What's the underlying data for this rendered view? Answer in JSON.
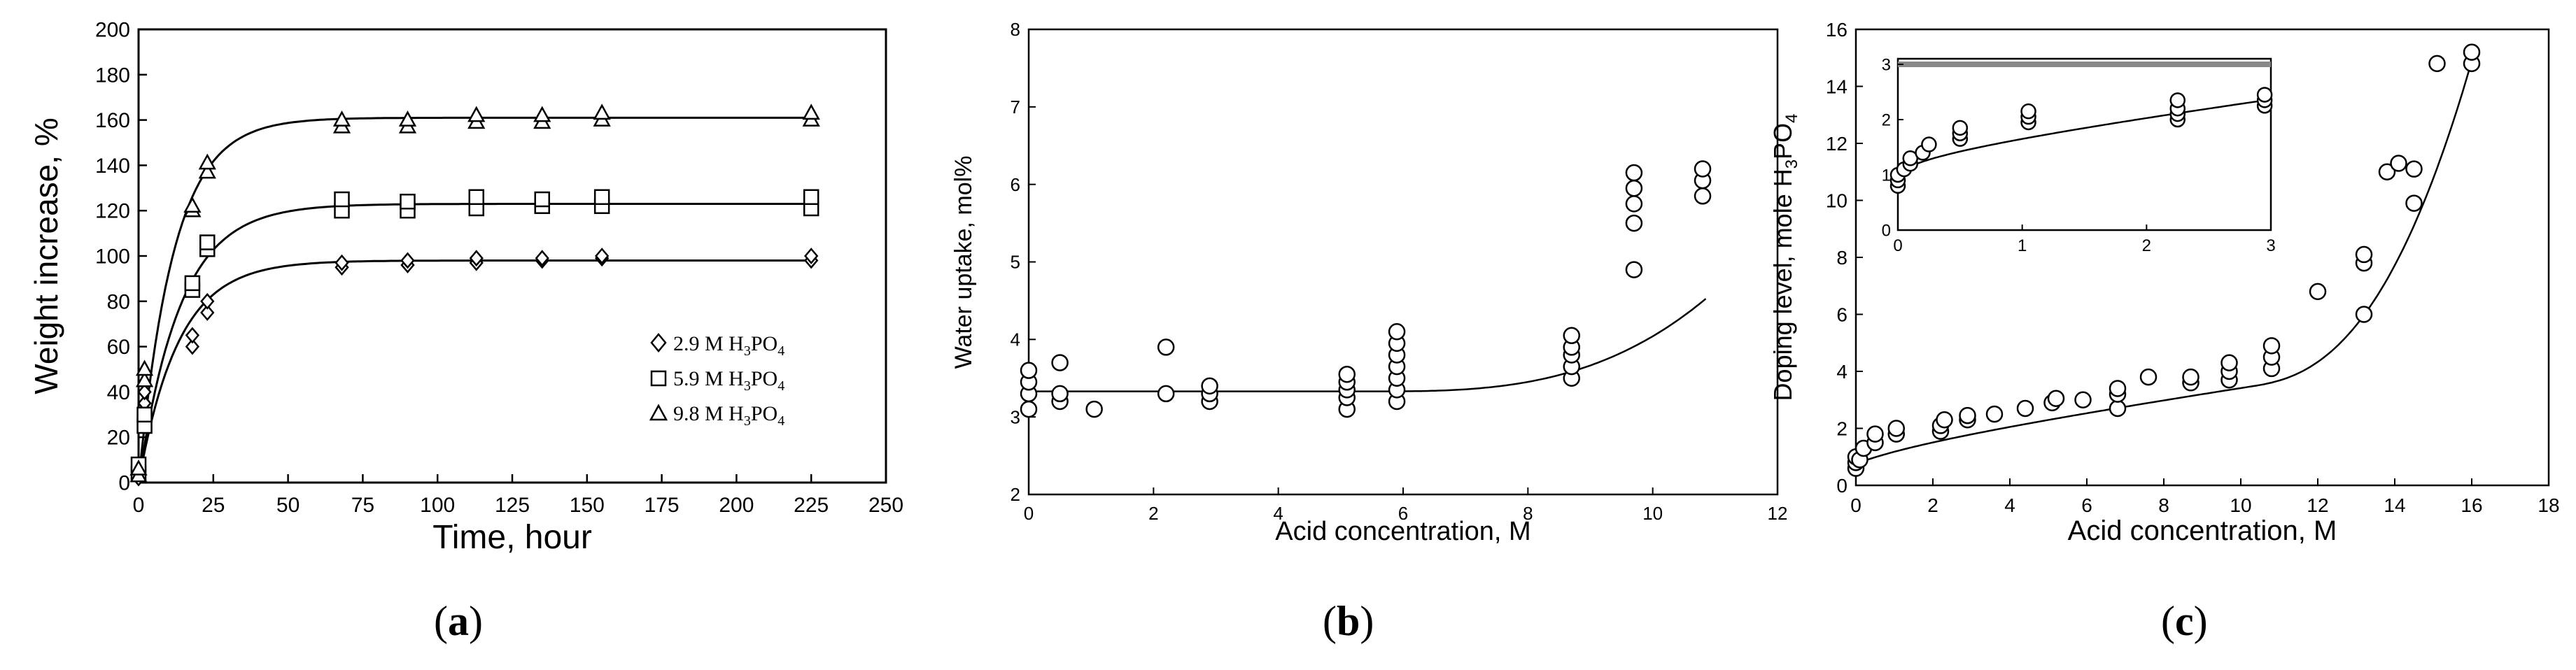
{
  "chart_data": [
    {
      "type": "scatter",
      "panel_label": "(a)",
      "title": "",
      "xlabel": "Time, hour",
      "ylabel": "Weight increase, %",
      "xlim": [
        0,
        250
      ],
      "ylim": [
        0,
        200
      ],
      "x_ticks": [
        0,
        25,
        50,
        75,
        100,
        125,
        150,
        175,
        200,
        225,
        250
      ],
      "y_ticks": [
        0,
        20,
        40,
        60,
        80,
        100,
        120,
        140,
        160,
        180,
        200
      ],
      "grid": false,
      "legend_position": "bottom-right",
      "series": [
        {
          "name": "2.9 M H3PO4",
          "legend_label": "2.9 M H",
          "legend_sub1": "3",
          "legend_mid": "PO",
          "legend_sub2": "4",
          "marker": "diamond",
          "points": [
            [
              0,
              2
            ],
            [
              0,
              5
            ],
            [
              2,
              35
            ],
            [
              2,
              40
            ],
            [
              18,
              60
            ],
            [
              18,
              65
            ],
            [
              23,
              75
            ],
            [
              23,
              80
            ],
            [
              68,
              95
            ],
            [
              68,
              97
            ],
            [
              90,
              96
            ],
            [
              90,
              98
            ],
            [
              113,
              97
            ],
            [
              113,
              99
            ],
            [
              135,
              98
            ],
            [
              135,
              99
            ],
            [
              155,
              99
            ],
            [
              155,
              100
            ],
            [
              225,
              98
            ],
            [
              225,
              100
            ]
          ],
          "fit": {
            "a": 98,
            "k": 0.075
          }
        },
        {
          "name": "5.9 M H3PO4",
          "legend_label": "5.9 M H",
          "legend_sub1": "3",
          "legend_mid": "PO",
          "legend_sub2": "4",
          "marker": "square",
          "points": [
            [
              0,
              4
            ],
            [
              0,
              8
            ],
            [
              2,
              25
            ],
            [
              2,
              30
            ],
            [
              18,
              85
            ],
            [
              18,
              88
            ],
            [
              23,
              103
            ],
            [
              23,
              106
            ],
            [
              68,
              120
            ],
            [
              68,
              125
            ],
            [
              90,
              120
            ],
            [
              90,
              124
            ],
            [
              113,
              121
            ],
            [
              113,
              126
            ],
            [
              135,
              122
            ],
            [
              135,
              125
            ],
            [
              155,
              122
            ],
            [
              155,
              126
            ],
            [
              225,
              121
            ],
            [
              225,
              126
            ]
          ],
          "fit": {
            "a": 123,
            "k": 0.072
          }
        },
        {
          "name": "9.8 M H3PO4",
          "legend_label": "9.8 M H",
          "legend_sub1": "3",
          "legend_mid": "PO",
          "legend_sub2": "4",
          "marker": "triangle",
          "points": [
            [
              0,
              3
            ],
            [
              0,
              6
            ],
            [
              2,
              45
            ],
            [
              2,
              50
            ],
            [
              18,
              120
            ],
            [
              18,
              122
            ],
            [
              23,
              137
            ],
            [
              23,
              141
            ],
            [
              68,
              157
            ],
            [
              68,
              160
            ],
            [
              90,
              157
            ],
            [
              90,
              160
            ],
            [
              113,
              159
            ],
            [
              113,
              162
            ],
            [
              135,
              159
            ],
            [
              135,
              162
            ],
            [
              155,
              160
            ],
            [
              155,
              163
            ],
            [
              225,
              160
            ],
            [
              225,
              163
            ]
          ],
          "fit": {
            "a": 161,
            "k": 0.085
          }
        }
      ]
    },
    {
      "type": "scatter",
      "panel_label": "(b)",
      "title": "",
      "xlabel": "Acid concentration, M",
      "ylabel": "Water uptake, mol%",
      "xlim": [
        0,
        12
      ],
      "ylim": [
        2,
        8
      ],
      "x_ticks": [
        0,
        2,
        4,
        6,
        8,
        10,
        12
      ],
      "y_ticks": [
        2,
        3,
        4,
        5,
        6,
        7,
        8
      ],
      "grid": false,
      "series": [
        {
          "name": "Water uptake",
          "marker": "circle",
          "points": [
            [
              0,
              3.1
            ],
            [
              0,
              3.3
            ],
            [
              0,
              3.45
            ],
            [
              0,
              3.6
            ],
            [
              0.5,
              3.2
            ],
            [
              0.5,
              3.3
            ],
            [
              0.5,
              3.7
            ],
            [
              1.05,
              3.1
            ],
            [
              2.2,
              3.3
            ],
            [
              2.2,
              3.9
            ],
            [
              2.9,
              3.2
            ],
            [
              2.9,
              3.3
            ],
            [
              2.9,
              3.4
            ],
            [
              5.1,
              3.1
            ],
            [
              5.1,
              3.25
            ],
            [
              5.1,
              3.35
            ],
            [
              5.1,
              3.45
            ],
            [
              5.1,
              3.55
            ],
            [
              5.9,
              3.2
            ],
            [
              5.9,
              3.35
            ],
            [
              5.9,
              3.5
            ],
            [
              5.9,
              3.65
            ],
            [
              5.9,
              3.8
            ],
            [
              5.9,
              3.95
            ],
            [
              5.9,
              4.1
            ],
            [
              8.7,
              3.5
            ],
            [
              8.7,
              3.65
            ],
            [
              8.7,
              3.8
            ],
            [
              8.7,
              3.9
            ],
            [
              8.7,
              4.05
            ],
            [
              9.7,
              4.9
            ],
            [
              9.7,
              5.5
            ],
            [
              9.7,
              5.75
            ],
            [
              9.7,
              5.95
            ],
            [
              9.7,
              6.15
            ],
            [
              10.8,
              5.85
            ],
            [
              10.8,
              6.05
            ],
            [
              10.8,
              6.2
            ]
          ],
          "fit": {
            "base": 3.33,
            "c": 0.0078,
            "p": 3
          }
        }
      ]
    },
    {
      "type": "scatter",
      "panel_label": "(c)",
      "title": "",
      "xlabel": "Acid concentration, M",
      "ylabel": "Doping level, mole H3PO4",
      "ylabel_text": "Doping level, mole H",
      "ylabel_sub1": "3",
      "ylabel_mid": "PO",
      "ylabel_sub2": "4",
      "xlim": [
        0,
        18
      ],
      "ylim": [
        0,
        16
      ],
      "x_ticks": [
        0,
        2,
        4,
        6,
        8,
        10,
        12,
        14,
        16,
        18
      ],
      "y_ticks": [
        0,
        2,
        4,
        6,
        8,
        10,
        12,
        14,
        16
      ],
      "grid": false,
      "series": [
        {
          "name": "Doping level",
          "marker": "circle",
          "points": [
            [
              0,
              0.6
            ],
            [
              0,
              0.8
            ],
            [
              0,
              1.0
            ],
            [
              0.1,
              0.9
            ],
            [
              0.2,
              1.3
            ],
            [
              0.5,
              1.5
            ],
            [
              0.5,
              1.8
            ],
            [
              1.05,
              1.8
            ],
            [
              1.05,
              2.0
            ],
            [
              2.2,
              1.9
            ],
            [
              2.2,
              2.1
            ],
            [
              2.3,
              2.3
            ],
            [
              2.9,
              2.3
            ],
            [
              2.9,
              2.45
            ],
            [
              3.6,
              2.5
            ],
            [
              4.4,
              2.7
            ],
            [
              5.1,
              2.9
            ],
            [
              5.2,
              3.05
            ],
            [
              5.9,
              3.0
            ],
            [
              6.8,
              2.7
            ],
            [
              6.8,
              3.2
            ],
            [
              6.8,
              3.4
            ],
            [
              7.6,
              3.8
            ],
            [
              8.7,
              3.6
            ],
            [
              8.7,
              3.8
            ],
            [
              9.7,
              3.7
            ],
            [
              9.7,
              4.0
            ],
            [
              9.7,
              4.3
            ],
            [
              10.8,
              4.1
            ],
            [
              10.8,
              4.5
            ],
            [
              10.8,
              4.9
            ],
            [
              12.0,
              6.8
            ],
            [
              13.2,
              6.0
            ],
            [
              13.2,
              7.8
            ],
            [
              13.2,
              8.1
            ],
            [
              13.8,
              11.0
            ],
            [
              14.1,
              11.3
            ],
            [
              14.5,
              9.9
            ],
            [
              14.5,
              11.1
            ],
            [
              15.1,
              14.8
            ],
            [
              16.0,
              14.8
            ],
            [
              16.0,
              15.2
            ]
          ],
          "fit": {
            "a": 0.75,
            "b": 0.36,
            "c": 0.06,
            "s": 10.3,
            "p": 2.5
          }
        }
      ],
      "inset": {
        "xlim": [
          0,
          3
        ],
        "ylim": [
          0,
          3
        ],
        "x_ticks": [
          0,
          1,
          2,
          3
        ],
        "y_ticks": [
          0,
          1,
          2,
          3
        ],
        "points": [
          [
            0,
            0.8
          ],
          [
            0,
            0.9
          ],
          [
            0,
            1.0
          ],
          [
            0.05,
            1.1
          ],
          [
            0.1,
            1.2
          ],
          [
            0.1,
            1.3
          ],
          [
            0.2,
            1.4
          ],
          [
            0.25,
            1.55
          ],
          [
            0.5,
            1.65
          ],
          [
            0.5,
            1.75
          ],
          [
            0.5,
            1.85
          ],
          [
            1.05,
            1.95
          ],
          [
            1.05,
            2.05
          ],
          [
            1.05,
            2.15
          ],
          [
            2.25,
            2.0
          ],
          [
            2.25,
            2.1
          ],
          [
            2.25,
            2.2
          ],
          [
            2.25,
            2.35
          ],
          [
            2.95,
            2.25
          ],
          [
            2.95,
            2.35
          ],
          [
            2.95,
            2.45
          ]
        ]
      }
    }
  ],
  "panels": {
    "a_label_open": "(",
    "a_label_letter": "a",
    "a_label_close": ")",
    "b_label_open": "(",
    "b_label_letter": "b",
    "b_label_close": ")",
    "c_label_open": "(",
    "c_label_letter": "c",
    "c_label_close": ")"
  }
}
